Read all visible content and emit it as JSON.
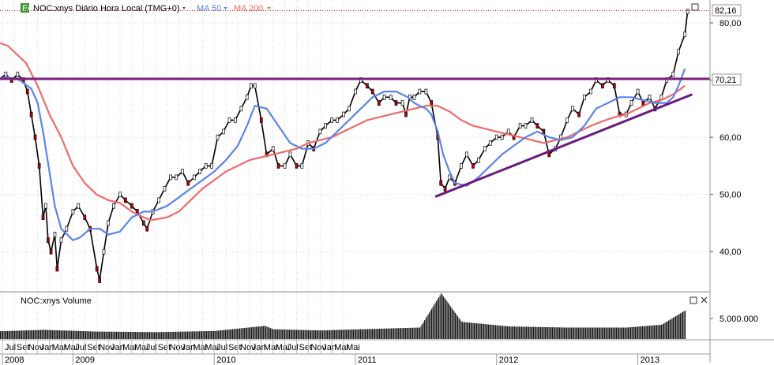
{
  "header": {
    "eq_badge": "Eq",
    "title": "NOC:xnys Diário Hora Local (TMG+0)",
    "ma50_label": "MA 50",
    "ma200_label": "MA 200"
  },
  "volume_panel": {
    "title": "NOC:xnys Volume"
  },
  "colors": {
    "price": "#000000",
    "ma50": "#5b84e8",
    "ma200": "#f06a6a",
    "resistance": "#7b1f7b",
    "trendline": "#6a1a80",
    "last_price_line": "#c00000",
    "eq_badge_bg": "#3a9a3a",
    "grid": "#d9d9d9",
    "axis_bg": "#ffffff"
  },
  "icons": {
    "ma50_dropdown": "triangle-down-icon",
    "ma200_dropdown": "triangle-down-icon",
    "maximize": "square-icon",
    "close": "x-icon"
  },
  "chart_data": [
    {
      "type": "line",
      "title": "NOC:xnys Diário Hora Local (TMG+0)",
      "x_months": [
        "Jul",
        "Set",
        "Nov",
        "Jan",
        "Mar",
        "Mai",
        "Jul",
        "Set",
        "Nov",
        "Jan",
        "Mar",
        "Mai",
        "Jul",
        "Set",
        "Nov",
        "Jan",
        "Mar",
        "Mai",
        "Jul",
        "Set",
        "Nov",
        "Jan",
        "Mar",
        "Mai",
        "Jul",
        "Set",
        "Nov",
        "Jan",
        "Mar",
        "Mai"
      ],
      "x_years": [
        "2008",
        "2009",
        "2010",
        "2011",
        "2012",
        "2013"
      ],
      "y_ticks": [
        "40,00",
        "50,00",
        "60,00",
        "70,00",
        "80,00"
      ],
      "ylim": [
        33,
        84
      ],
      "price_labels": {
        "last": "82,16",
        "resistance": "70,21"
      },
      "resistance_level": 70.21,
      "series": [
        {
          "name": "NOC:xnys",
          "x": [
            "2008-06-01",
            "2008-06-20",
            "2008-07-10",
            "2008-07-25",
            "2008-08-10",
            "2008-08-25",
            "2008-09-05",
            "2008-09-15",
            "2008-09-25",
            "2008-10-05",
            "2008-10-15",
            "2008-10-22",
            "2008-10-28",
            "2008-11-05",
            "2008-11-15",
            "2008-11-21",
            "2008-12-01",
            "2008-12-15",
            "2009-01-01",
            "2009-01-15",
            "2009-02-01",
            "2009-02-15",
            "2009-03-02",
            "2009-03-09",
            "2009-03-20",
            "2009-04-01",
            "2009-04-15",
            "2009-05-01",
            "2009-05-15",
            "2009-06-01",
            "2009-06-15",
            "2009-07-01",
            "2009-07-10",
            "2009-07-25",
            "2009-08-10",
            "2009-08-25",
            "2009-09-10",
            "2009-09-25",
            "2009-10-10",
            "2009-10-25",
            "2009-11-10",
            "2009-11-25",
            "2009-12-10",
            "2009-12-25",
            "2010-01-10",
            "2010-01-25",
            "2010-02-10",
            "2010-02-25",
            "2010-03-10",
            "2010-03-25",
            "2010-04-05",
            "2010-04-15",
            "2010-05-01",
            "2010-05-15",
            "2010-06-01",
            "2010-06-15",
            "2010-07-01",
            "2010-07-15",
            "2010-08-01",
            "2010-08-15",
            "2010-09-01",
            "2010-09-15",
            "2010-10-01",
            "2010-10-15",
            "2010-11-01",
            "2010-11-15",
            "2010-12-01",
            "2010-12-15",
            "2011-01-01",
            "2011-01-15",
            "2011-02-01",
            "2011-02-15",
            "2011-03-01",
            "2011-03-15",
            "2011-04-01",
            "2011-04-15",
            "2011-05-01",
            "2011-05-10",
            "2011-05-20",
            "2011-06-01",
            "2011-06-15",
            "2011-07-01",
            "2011-07-15",
            "2011-08-01",
            "2011-08-09",
            "2011-08-20",
            "2011-09-01",
            "2011-09-15",
            "2011-10-01",
            "2011-10-15",
            "2011-11-01",
            "2011-11-15",
            "2011-12-01",
            "2011-12-15",
            "2012-01-01",
            "2012-01-15",
            "2012-02-01",
            "2012-02-15",
            "2012-03-01",
            "2012-03-15",
            "2012-04-01",
            "2012-04-15",
            "2012-05-01",
            "2012-05-15",
            "2012-06-01",
            "2012-06-15",
            "2012-07-01",
            "2012-07-15",
            "2012-08-01",
            "2012-08-15",
            "2012-09-01",
            "2012-09-15",
            "2012-10-01",
            "2012-10-15",
            "2012-11-01",
            "2012-11-15",
            "2012-12-01",
            "2012-12-15",
            "2013-01-01",
            "2013-01-15",
            "2013-02-01",
            "2013-02-15",
            "2013-03-01",
            "2013-03-15",
            "2013-04-01",
            "2013-04-15",
            "2013-05-01",
            "2013-05-08"
          ],
          "values": [
            67,
            70,
            71,
            70,
            71,
            70,
            68,
            64,
            60,
            55,
            46,
            48,
            42,
            40,
            43,
            37,
            42,
            44,
            47,
            48,
            46,
            44,
            37,
            35,
            40,
            45,
            48,
            50,
            49,
            48,
            47,
            45,
            44,
            47,
            49,
            51,
            53,
            53,
            54,
            52,
            53,
            54,
            55,
            55,
            60,
            61,
            63,
            63,
            65,
            67,
            69,
            69,
            63,
            57,
            58,
            55,
            55,
            57,
            55,
            55,
            59,
            58,
            61,
            62,
            63,
            63,
            64,
            65,
            68,
            70,
            69,
            68,
            66,
            67,
            67,
            66,
            66,
            64,
            67,
            67,
            68,
            68,
            66,
            60,
            52,
            51,
            53,
            52,
            55,
            57,
            55,
            56,
            58,
            59,
            60,
            60,
            61,
            60,
            62,
            62,
            63,
            62,
            61,
            57,
            58,
            60,
            63,
            65,
            64,
            67,
            68,
            70,
            69,
            70,
            69,
            64,
            64,
            66,
            68,
            66,
            67,
            65,
            67,
            70,
            71,
            75,
            78,
            82
          ]
        },
        {
          "name": "MA 50",
          "x": [
            "2008-06-01",
            "2008-07-15",
            "2008-08-15",
            "2008-09-15",
            "2008-10-01",
            "2008-10-15",
            "2008-11-01",
            "2008-11-15",
            "2008-12-01",
            "2009-01-01",
            "2009-01-20",
            "2009-02-15",
            "2009-03-10",
            "2009-04-01",
            "2009-05-01",
            "2009-06-01",
            "2009-07-01",
            "2009-07-25",
            "2009-09-01",
            "2009-10-01",
            "2009-11-01",
            "2009-12-01",
            "2010-01-01",
            "2010-02-01",
            "2010-03-01",
            "2010-03-25",
            "2010-04-15",
            "2010-05-15",
            "2010-06-15",
            "2010-07-15",
            "2010-08-15",
            "2010-09-15",
            "2010-10-15",
            "2010-11-15",
            "2010-12-15",
            "2011-01-15",
            "2011-02-15",
            "2011-03-15",
            "2011-04-15",
            "2011-05-15",
            "2011-06-01",
            "2011-06-15",
            "2011-07-01",
            "2011-07-15",
            "2011-08-01",
            "2011-08-15",
            "2011-09-01",
            "2011-09-15",
            "2011-10-15",
            "2011-11-15",
            "2011-12-15",
            "2012-01-15",
            "2012-02-15",
            "2012-03-15",
            "2012-04-15",
            "2012-05-15",
            "2012-06-15",
            "2012-07-15",
            "2012-08-15",
            "2012-09-15",
            "2012-10-15",
            "2012-11-15",
            "2012-12-15",
            "2013-01-15",
            "2013-02-15",
            "2013-03-15",
            "2013-04-01",
            "2013-04-15",
            "2013-05-01"
          ],
          "values": [
            70,
            70.5,
            70,
            68.5,
            66,
            61,
            54,
            48,
            44,
            42,
            42.5,
            44,
            44,
            43,
            43.5,
            46,
            47,
            47,
            48,
            49.5,
            51,
            52.5,
            54,
            56,
            58.5,
            62,
            65.5,
            65,
            62,
            59,
            58,
            58,
            59,
            61,
            63,
            65,
            67,
            68,
            68,
            67,
            66,
            65.5,
            65,
            64,
            61,
            57,
            54,
            52,
            51.5,
            53,
            55,
            57,
            58.5,
            60,
            61,
            60,
            59.5,
            60,
            62,
            65,
            66,
            67,
            67,
            66.5,
            66,
            66,
            67,
            69,
            72
          ]
        },
        {
          "name": "MA 200",
          "x": [
            "2008-06-01",
            "2008-07-15",
            "2008-09-01",
            "2008-10-01",
            "2008-11-01",
            "2008-12-01",
            "2009-01-01",
            "2009-02-01",
            "2009-03-01",
            "2009-04-01",
            "2009-05-01",
            "2009-06-01",
            "2009-07-01",
            "2009-07-20",
            "2009-09-01",
            "2009-10-01",
            "2009-11-01",
            "2009-12-01",
            "2010-01-01",
            "2010-02-01",
            "2010-03-01",
            "2010-04-01",
            "2010-05-01",
            "2010-06-01",
            "2010-07-01",
            "2010-08-01",
            "2010-09-01",
            "2010-10-01",
            "2010-11-01",
            "2010-12-01",
            "2011-01-01",
            "2011-02-01",
            "2011-03-01",
            "2011-04-01",
            "2011-05-01",
            "2011-06-01",
            "2011-07-01",
            "2011-08-01",
            "2011-09-01",
            "2011-10-01",
            "2011-11-01",
            "2011-12-01",
            "2012-01-01",
            "2012-02-01",
            "2012-03-01",
            "2012-04-01",
            "2012-05-01",
            "2012-06-01",
            "2012-07-01",
            "2012-08-01",
            "2012-09-01",
            "2012-10-01",
            "2012-11-01",
            "2012-12-01",
            "2013-01-01",
            "2013-02-01",
            "2013-03-01",
            "2013-04-01",
            "2013-05-01"
          ],
          "values": [
            77,
            76,
            73,
            69,
            64,
            60,
            55,
            52,
            50,
            49,
            48.5,
            47,
            46,
            45.5,
            46,
            47,
            49,
            51,
            52.5,
            54,
            55,
            56,
            56.5,
            57,
            57.5,
            58,
            59,
            59.5,
            60,
            61,
            62,
            63,
            63.5,
            64,
            64.5,
            65,
            65.5,
            65.5,
            64.5,
            63,
            62,
            61.5,
            61,
            60.5,
            60,
            59.5,
            59,
            59.5,
            60,
            61,
            62,
            62.8,
            63.5,
            64,
            65,
            66,
            66.5,
            67.5,
            69
          ]
        },
        {
          "name": "Volume",
          "x": [
            "2008-06-01",
            "2008-10-15",
            "2009-03-01",
            "2009-08-01",
            "2010-01-01",
            "2010-05-10",
            "2010-06-01",
            "2010-10-01",
            "2011-03-01",
            "2011-06-15",
            "2011-08-09",
            "2011-10-01",
            "2012-02-01",
            "2012-07-01",
            "2012-12-01",
            "2013-03-01",
            "2013-05-01"
          ],
          "values": [
            1300000,
            1600000,
            1300000,
            1200000,
            1400000,
            2300000,
            1700000,
            1500000,
            1800000,
            2000000,
            8000000,
            3000000,
            2200000,
            2000000,
            2000000,
            2500000,
            5000000
          ]
        },
        {
          "name": "Trendline",
          "x": [
            "2011-07-25",
            "2013-05-20"
          ],
          "values": [
            49.6,
            67.5
          ]
        }
      ],
      "volume_ticks": [
        "5.000.000"
      ],
      "grid": true
    }
  ]
}
